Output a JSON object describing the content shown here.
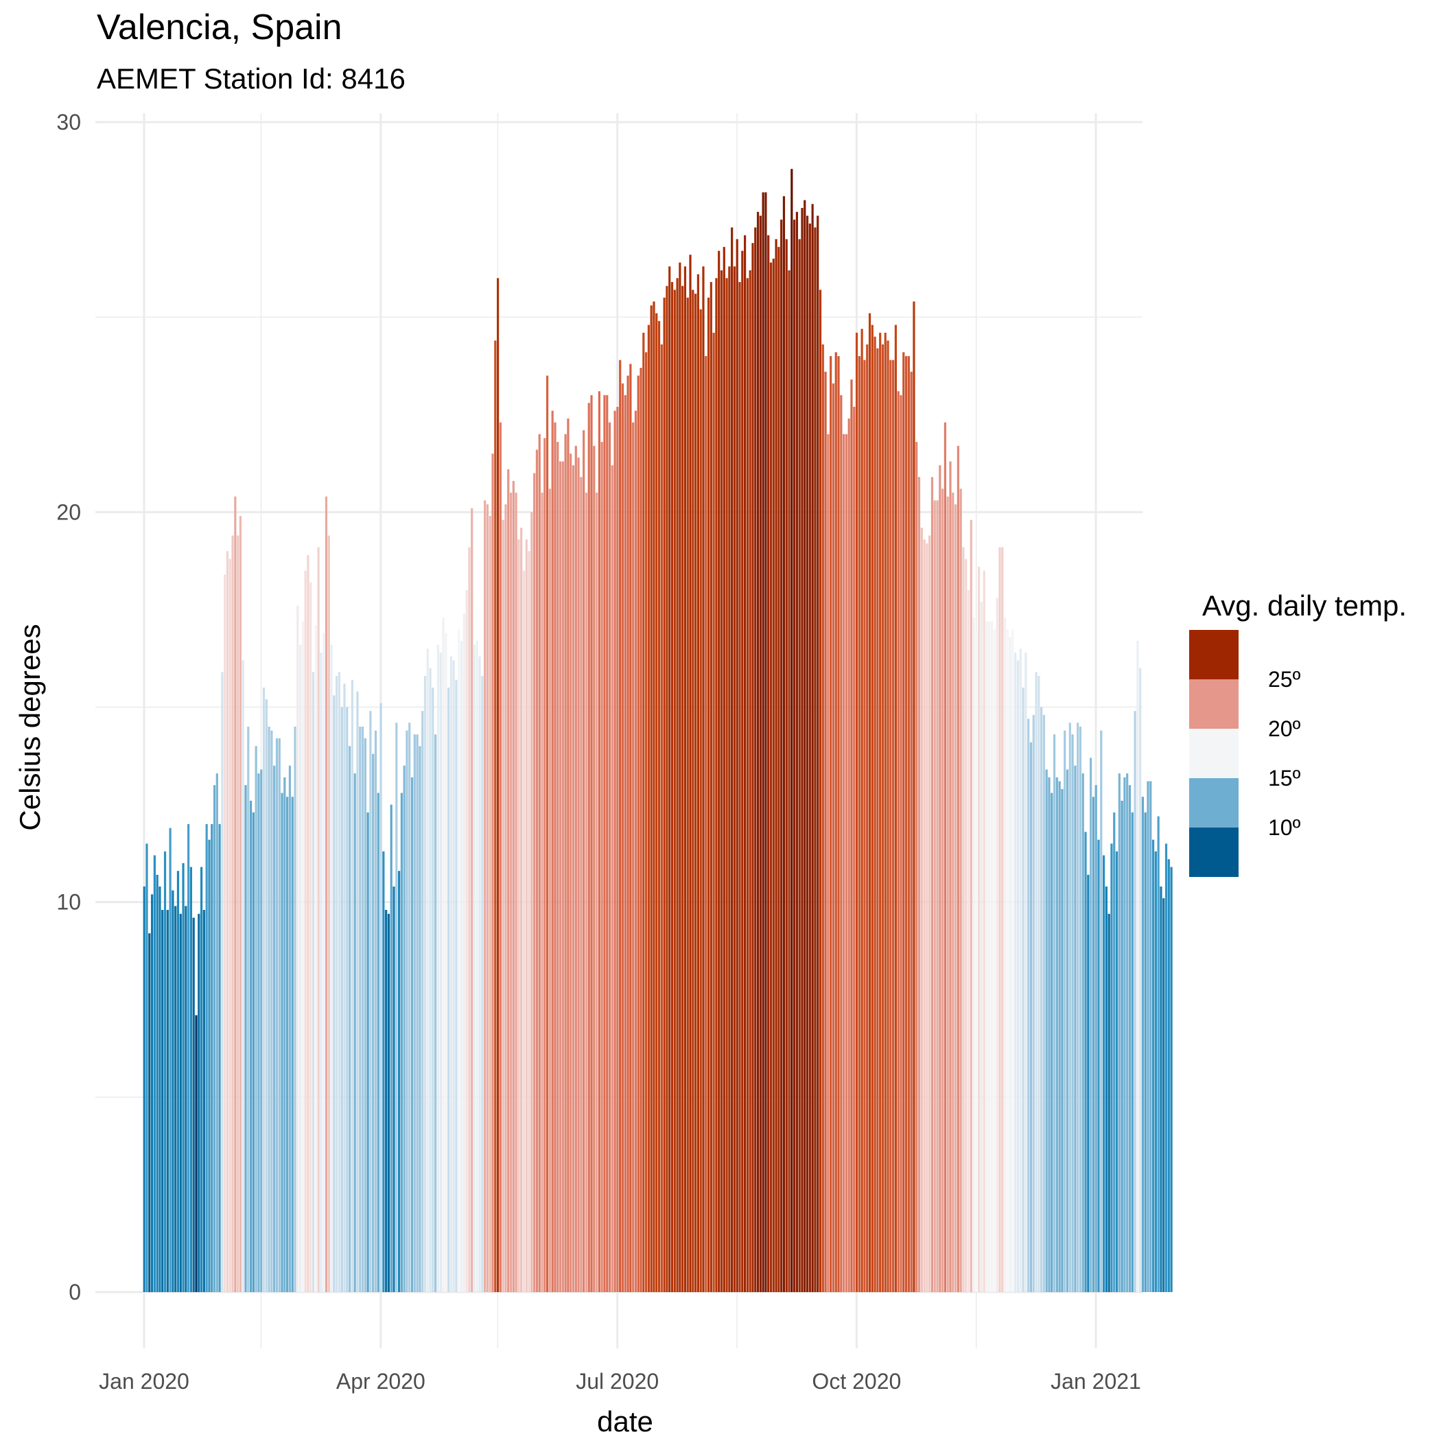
{
  "chart_data": {
    "type": "bar",
    "title": "Valencia, Spain",
    "subtitle": "AEMET Station Id: 8416",
    "xlabel": "date",
    "ylabel": "Celsius degrees",
    "x_start": "2020-01-01",
    "x_end": "2020-12-31",
    "x_range": [
      "2020-01-01",
      "2021-01-01"
    ],
    "ylim": [
      0,
      30
    ],
    "grid": true,
    "y_ticks": [
      {
        "value": 0,
        "label": "0"
      },
      {
        "value": 10,
        "label": "10"
      },
      {
        "value": 20,
        "label": "20"
      },
      {
        "value": 30,
        "label": "30"
      }
    ],
    "x_ticks": [
      {
        "date": "2020-01-01",
        "label": "Jan 2020"
      },
      {
        "date": "2020-04-01",
        "label": "Apr 2020"
      },
      {
        "date": "2020-07-01",
        "label": "Jul 2020"
      },
      {
        "date": "2020-10-01",
        "label": "Oct 2020"
      },
      {
        "date": "2021-01-01",
        "label": "Jan 2021"
      }
    ],
    "minor_x_ticks": [
      "2020-02-15",
      "2020-05-16",
      "2020-08-16",
      "2020-11-16"
    ],
    "daily_values": [
      10.4,
      11.5,
      9.2,
      10.2,
      11.2,
      10.7,
      10.4,
      9.8,
      11.3,
      9.8,
      11.9,
      10.3,
      9.9,
      10.8,
      9.7,
      11.0,
      9.9,
      12.0,
      10.9,
      9.6,
      7.1,
      9.7,
      10.9,
      9.8,
      12.0,
      11.6,
      12.0,
      13.0,
      13.3,
      12.0,
      15.9,
      18.4,
      19.0,
      18.8,
      19.4,
      20.4,
      19.4,
      19.9,
      16.2,
      13.0,
      14.5,
      12.6,
      12.3,
      14.0,
      13.3,
      13.4,
      15.5,
      15.2,
      14.5,
      14.4,
      13.5,
      14.2,
      14.2,
      12.8,
      13.2,
      12.7,
      13.5,
      12.7,
      14.5,
      17.6,
      16.6,
      17.2,
      18.5,
      18.9,
      18.2,
      15.9,
      17.1,
      19.1,
      16.4,
      16.9,
      20.4,
      19.4,
      16.6,
      15.3,
      15.8,
      15.9,
      15.0,
      15.6,
      15.0,
      14.0,
      15.7,
      13.3,
      15.4,
      14.5,
      14.5,
      14.2,
      12.3,
      14.9,
      13.8,
      14.4,
      12.8,
      15.1,
      11.3,
      9.8,
      9.7,
      12.5,
      10.4,
      14.6,
      10.8,
      12.8,
      13.5,
      14.4,
      14.6,
      13.2,
      14.3,
      14.3,
      14.0,
      14.9,
      15.8,
      16.5,
      16.0,
      15.5,
      14.3,
      16.6,
      16.4,
      17.3,
      16.9,
      15.5,
      16.3,
      16.2,
      15.7,
      17.0,
      16.7,
      17.4,
      18.0,
      19.1,
      20.1,
      16.6,
      16.7,
      16.3,
      15.8,
      20.3,
      20.2,
      19.9,
      21.5,
      24.4,
      26.0,
      22.3,
      19.8,
      20.2,
      21.1,
      20.5,
      20.8,
      20.5,
      19.3,
      19.6,
      18.5,
      19.3,
      19.0,
      20.0,
      21.0,
      21.6,
      22.0,
      20.5,
      21.9,
      23.5,
      20.6,
      22.6,
      22.3,
      21.8,
      21.3,
      21.3,
      22.0,
      22.4,
      21.5,
      21.2,
      21.7,
      21.4,
      20.9,
      22.1,
      20.5,
      22.8,
      23.0,
      21.7,
      20.5,
      23.1,
      21.8,
      23.0,
      23.0,
      22.3,
      21.2,
      22.6,
      22.7,
      23.9,
      23.3,
      23.0,
      23.5,
      23.8,
      22.3,
      22.6,
      23.5,
      23.7,
      24.6,
      24.1,
      24.8,
      25.3,
      25.4,
      25.1,
      24.9,
      24.3,
      25.5,
      25.8,
      26.3,
      25.9,
      25.7,
      26.0,
      26.4,
      25.8,
      26.3,
      25.5,
      26.6,
      25.7,
      25.6,
      26.1,
      25.2,
      26.3,
      24.0,
      25.5,
      25.9,
      24.6,
      26.0,
      26.7,
      26.2,
      26.8,
      26.0,
      26.3,
      27.3,
      26.3,
      27.0,
      25.9,
      26.7,
      27.1,
      26.0,
      26.2,
      26.9,
      27.3,
      27.7,
      27.6,
      28.2,
      28.2,
      27.1,
      26.4,
      26.5,
      27.0,
      26.8,
      27.5,
      28.1,
      27.0,
      26.2,
      28.8,
      27.5,
      27.7,
      27.0,
      27.8,
      28.0,
      27.6,
      27.4,
      27.9,
      27.3,
      27.6,
      25.7,
      24.3,
      23.6,
      22.0,
      24.0,
      23.3,
      24.1,
      24.0,
      23.0,
      22.0,
      22.0,
      22.4,
      23.4,
      22.7,
      24.6,
      24.0,
      24.7,
      23.9,
      24.3,
      25.1,
      24.8,
      24.5,
      24.2,
      24.6,
      24.3,
      24.6,
      24.4,
      23.9,
      23.9,
      24.8,
      23.1,
      23.0,
      24.1,
      24.0,
      24.0,
      23.6,
      25.4,
      21.8,
      20.9,
      19.6,
      19.3,
      19.2,
      19.4,
      20.9,
      20.3,
      20.3,
      21.2,
      20.6,
      22.3,
      20.4,
      21.3,
      20.5,
      20.2,
      21.7,
      20.6,
      19.1,
      18.8,
      18.0,
      19.8,
      17.3,
      17.0,
      18.6,
      17.7,
      18.5,
      17.2,
      17.2,
      17.2,
      17.0,
      17.8,
      19.1,
      19.1,
      17.3,
      17.0,
      16.8,
      17.0,
      16.4,
      16.2,
      16.5,
      15.5,
      16.4,
      14.7,
      14.1,
      14.8,
      15.9,
      15.8,
      15.0,
      14.8,
      13.4,
      13.2,
      12.8,
      14.3,
      13.2,
      13.1,
      12.9,
      14.4,
      13.4,
      14.6,
      14.3,
      13.5,
      14.6,
      14.5,
      13.3,
      11.8,
      10.7,
      13.7,
      12.7,
      13.0,
      11.6,
      14.4,
      11.2,
      10.4,
      9.7,
      11.5,
      12.3,
      11.3,
      13.3,
      12.6,
      13.2,
      13.3,
      13.0,
      12.3,
      14.9,
      16.7,
      16.0,
      12.7,
      12.3,
      13.1,
      13.1,
      11.6,
      11.3,
      12.2,
      10.4,
      10.1,
      11.5,
      11.1,
      10.9
    ],
    "legend": {
      "title": "Avg. daily temp.",
      "position": "right",
      "breaks": [
        {
          "label": "25º",
          "value": 25
        },
        {
          "label": "20º",
          "value": 20
        },
        {
          "label": "15º",
          "value": 15
        },
        {
          "label": "10º",
          "value": 10
        }
      ],
      "colors_high_to_low": [
        "#9e2600",
        "#e4978a",
        "#f4f5f7",
        "#6eaed0",
        "#005a8f"
      ]
    },
    "color_scale": {
      "type": "diverging",
      "stops": [
        {
          "value": 7,
          "color": "#053061"
        },
        {
          "value": 9,
          "color": "#005a8f"
        },
        {
          "value": 11,
          "color": "#1f8cc0"
        },
        {
          "value": 13,
          "color": "#6eaed0"
        },
        {
          "value": 15,
          "color": "#b9d5e7"
        },
        {
          "value": 17,
          "color": "#f4f5f7"
        },
        {
          "value": 19,
          "color": "#f2d3cf"
        },
        {
          "value": 21,
          "color": "#e4978a"
        },
        {
          "value": 23,
          "color": "#dc6d52"
        },
        {
          "value": 25,
          "color": "#c1400e"
        },
        {
          "value": 27,
          "color": "#9e2600"
        },
        {
          "value": 29,
          "color": "#5e0f00"
        }
      ]
    }
  }
}
